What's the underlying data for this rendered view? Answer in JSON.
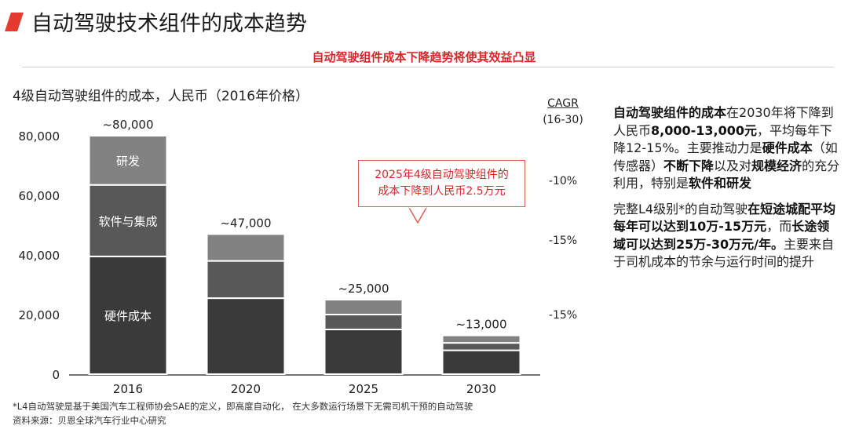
{
  "header": {
    "title": "自动驾驶技术组件的成本趋势",
    "subtitle": "自动驾驶组件成本下降趋势将使其效益凸显",
    "accent_color": "#e33b2f",
    "subtitle_color": "#d8262a"
  },
  "chart_data": {
    "type": "bar",
    "stacked": true,
    "title": "4级自动驾驶组件的成本，人民币（2016年价格）",
    "categories": [
      "2016",
      "2020",
      "2025",
      "2030"
    ],
    "series": [
      {
        "name": "硬件成本",
        "label": "硬件成本",
        "color": "#3a3a3b",
        "values": [
          39500,
          25500,
          15000,
          8000
        ]
      },
      {
        "name": "软件与集成",
        "label": "软件与集成",
        "color": "#585859",
        "values": [
          24000,
          12500,
          5000,
          2500
        ]
      },
      {
        "name": "研发",
        "label": "研发",
        "color": "#828283",
        "values": [
          16500,
          9000,
          5000,
          2500
        ]
      }
    ],
    "totals": [
      "~80,000",
      "~47,000",
      "~25,000",
      "~13,000"
    ],
    "yticks": [
      0,
      20000,
      40000,
      60000,
      80000
    ],
    "ytick_labels": [
      "0",
      "20,000",
      "40,000",
      "60,000",
      "80,000"
    ],
    "ylim": [
      0,
      80000
    ],
    "xlabel": "",
    "ylabel": "",
    "cagr": {
      "title": "CAGR",
      "period": "(16-30)",
      "labels": [
        "-10%",
        "-15%",
        "-15%"
      ],
      "values": [
        65000,
        45000,
        20000
      ]
    },
    "annotation": {
      "line1": "2025年4级自动驾驶组件的",
      "line2": "成本下降到人民币2.5万元",
      "color": "#d8262a"
    }
  },
  "side_panel": {
    "p1": [
      {
        "t": "自动驾驶组件的成本",
        "b": true
      },
      {
        "t": "在2030年将下降到人民币",
        "b": false
      },
      {
        "t": "8,000-13,000元",
        "b": true
      },
      {
        "t": "，平均每年下降12-15%。主要推动力是",
        "b": false
      },
      {
        "t": "硬件成本",
        "b": true
      },
      {
        "t": "（如传感器）",
        "b": false
      },
      {
        "t": "不断下降",
        "b": true
      },
      {
        "t": "以及对",
        "b": false
      },
      {
        "t": "规模经济",
        "b": true
      },
      {
        "t": "的充分利用，特别是",
        "b": false
      },
      {
        "t": "软件和研发",
        "b": true
      }
    ],
    "p2": [
      {
        "t": "完整L4级别*的自动驾驶",
        "b": false
      },
      {
        "t": "在短途城配平均每年可以达到10万-15万元",
        "b": true
      },
      {
        "t": "，而",
        "b": false
      },
      {
        "t": "长途领域可以达到25万-30万元/年。",
        "b": true
      },
      {
        "t": "主要来自于司机成本的节余与运行时间的提升",
        "b": false
      }
    ]
  },
  "footer": {
    "note": "*L4自动驾驶是基于美国汽车工程师协会SAE的定义，即高度自动化， 在大多数运行场景下无需司机干预的自动驾驶",
    "source": "资料来源：贝恩全球汽车行业中心研究"
  }
}
